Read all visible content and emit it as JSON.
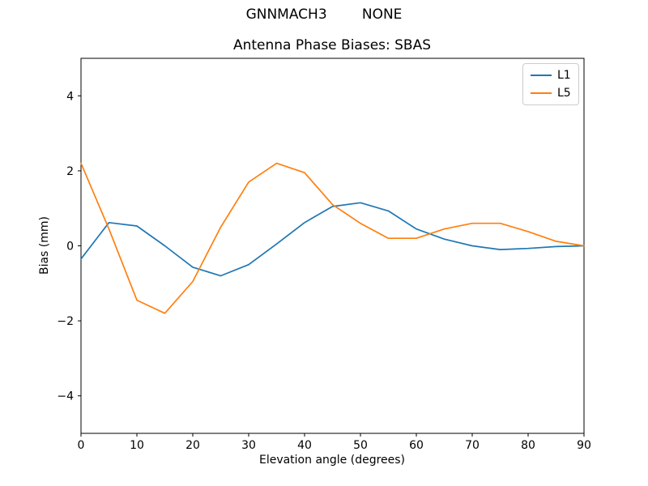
{
  "chart_data": {
    "type": "line",
    "suptitle": "GNNMACH3        NONE",
    "title": "Antenna Phase Biases: SBAS",
    "xlabel": "Elevation angle (degrees)",
    "ylabel": "Bias (mm)",
    "xlim": [
      0,
      90
    ],
    "ylim": [
      -5,
      5
    ],
    "x_ticks": [
      0,
      10,
      20,
      30,
      40,
      50,
      60,
      70,
      80,
      90
    ],
    "y_ticks": [
      -4,
      -2,
      0,
      2,
      4
    ],
    "grid": false,
    "legend_position": "upper right",
    "x": [
      0,
      5,
      10,
      15,
      20,
      25,
      30,
      35,
      40,
      45,
      50,
      55,
      60,
      65,
      70,
      75,
      80,
      85,
      90
    ],
    "series": [
      {
        "name": "L1",
        "color": "#1f77b4",
        "values": [
          -0.35,
          0.62,
          0.53,
          0.0,
          -0.57,
          -0.8,
          -0.5,
          0.05,
          0.62,
          1.05,
          1.15,
          0.93,
          0.45,
          0.18,
          0.0,
          -0.1,
          -0.07,
          -0.02,
          0.0
        ]
      },
      {
        "name": "L5",
        "color": "#ff7f0e",
        "values": [
          2.2,
          0.45,
          -1.45,
          -1.8,
          -0.95,
          0.5,
          1.7,
          2.2,
          1.95,
          1.1,
          0.6,
          0.2,
          0.2,
          0.45,
          0.6,
          0.6,
          0.38,
          0.12,
          0.0
        ]
      }
    ],
    "axis_color": "#000000"
  }
}
